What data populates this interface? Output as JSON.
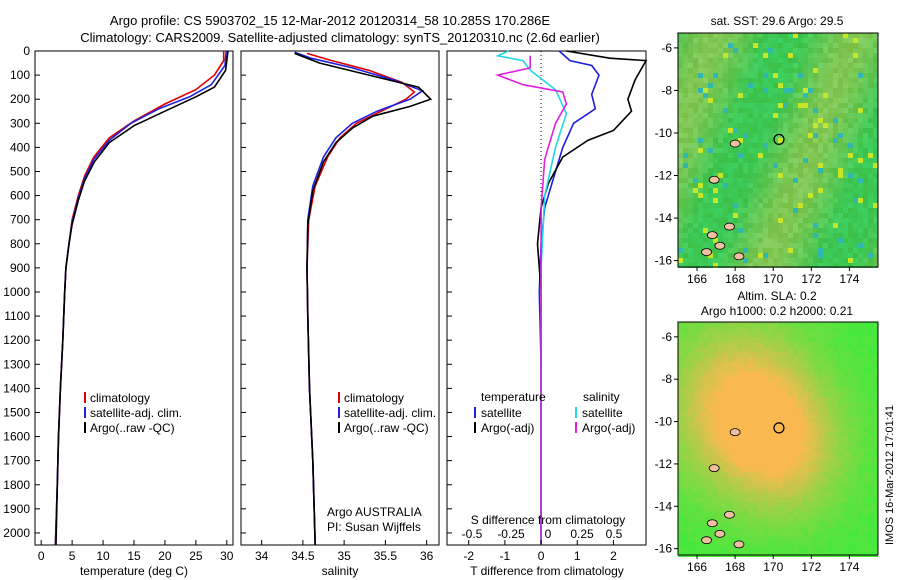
{
  "header": {
    "line1": "Argo profile: CS 5903702_15 12-Mar-2012 20120314_58 10.285S 170.286E",
    "line2": "Climatology: CARS2009. Satellite-adjusted climatology: synTS_20120310.nc (2.6d earlier)"
  },
  "colors": {
    "climatology": "#e00000",
    "satellite": "#1f1fe0",
    "argo": "#000000",
    "sal_satellite": "#22d8e8",
    "sal_argo": "#e020e0"
  },
  "footer_stamp": "IMOS 16-Mar-2012 17:01:41",
  "chart_data": [
    {
      "type": "line",
      "id": "temperature",
      "xlabel": "temperature (deg C)",
      "xlim": [
        -1,
        31
      ],
      "xticks": [
        "0",
        "5",
        "10",
        "15",
        "20",
        "25",
        "30"
      ],
      "ylim": [
        0,
        2050
      ],
      "yticks": [
        "0",
        "100",
        "200",
        "300",
        "400",
        "500",
        "600",
        "700",
        "800",
        "900",
        "1000",
        "1100",
        "1200",
        "1300",
        "1400",
        "1500",
        "1600",
        "1700",
        "1800",
        "1900",
        "2000"
      ],
      "legend": [
        "climatology",
        "satellite-adj. clim.",
        "Argo(..raw -QC)"
      ],
      "series": [
        {
          "name": "climatology",
          "color": "#e00000",
          "points": [
            [
              29.5,
              0
            ],
            [
              29.5,
              40
            ],
            [
              28,
              100
            ],
            [
              25,
              160
            ],
            [
              20,
              220
            ],
            [
              15,
              290
            ],
            [
              11,
              360
            ],
            [
              8.5,
              440
            ],
            [
              7,
              520
            ],
            [
              6,
              600
            ],
            [
              5,
              700
            ],
            [
              4.5,
              800
            ],
            [
              4,
              900
            ],
            [
              3.8,
              1000
            ],
            [
              3.5,
              1200
            ],
            [
              3.1,
              1400
            ],
            [
              2.8,
              1600
            ],
            [
              2.6,
              1800
            ],
            [
              2.3,
              2050
            ]
          ]
        },
        {
          "name": "satellite-adj. clim.",
          "color": "#1f1fe0",
          "points": [
            [
              29.9,
              0
            ],
            [
              29.7,
              60
            ],
            [
              27.5,
              140
            ],
            [
              24,
              190
            ],
            [
              19,
              240
            ],
            [
              14.5,
              300
            ],
            [
              11,
              370
            ],
            [
              8.5,
              450
            ],
            [
              7,
              530
            ],
            [
              6,
              610
            ],
            [
              5,
              710
            ],
            [
              4.5,
              800
            ],
            [
              4,
              900
            ],
            [
              3.8,
              1000
            ],
            [
              3.5,
              1200
            ],
            [
              3.1,
              1400
            ],
            [
              2.8,
              1600
            ],
            [
              2.6,
              1800
            ],
            [
              2.3,
              2050
            ]
          ]
        },
        {
          "name": "Argo(..raw -QC)",
          "color": "#000000",
          "points": [
            [
              30.2,
              0
            ],
            [
              29.8,
              80
            ],
            [
              28,
              150
            ],
            [
              25,
              190
            ],
            [
              20,
              250
            ],
            [
              15,
              310
            ],
            [
              11,
              380
            ],
            [
              8.6,
              460
            ],
            [
              7,
              540
            ],
            [
              6,
              620
            ],
            [
              5,
              720
            ],
            [
              4.5,
              800
            ],
            [
              4,
              900
            ],
            [
              3.8,
              1000
            ],
            [
              3.5,
              1200
            ],
            [
              3.1,
              1400
            ],
            [
              2.8,
              1600
            ],
            [
              2.6,
              1800
            ],
            [
              2.4,
              2050
            ]
          ]
        }
      ]
    },
    {
      "type": "line",
      "id": "salinity",
      "xlabel": "salinity",
      "xlim": [
        33.75,
        36.15
      ],
      "xticks": [
        "34",
        "34.5",
        "35",
        "35.5",
        "36"
      ],
      "ylim": [
        0,
        2050
      ],
      "legend": [
        "climatology",
        "satellite-adj. clim.",
        "Argo(..raw -QC)"
      ],
      "annotation": [
        "Argo AUSTRALIA",
        "PI: Susan Wijffels"
      ],
      "series": [
        {
          "name": "climatology",
          "color": "#e00000",
          "points": [
            [
              34.55,
              10
            ],
            [
              34.85,
              40
            ],
            [
              35.3,
              80
            ],
            [
              35.7,
              130
            ],
            [
              35.85,
              170
            ],
            [
              35.75,
              200
            ],
            [
              35.45,
              250
            ],
            [
              35.15,
              300
            ],
            [
              34.95,
              360
            ],
            [
              34.8,
              440
            ],
            [
              34.65,
              560
            ],
            [
              34.57,
              700
            ],
            [
              34.55,
              900
            ],
            [
              34.56,
              1100
            ],
            [
              34.58,
              1400
            ],
            [
              34.62,
              1700
            ],
            [
              34.65,
              2050
            ]
          ]
        },
        {
          "name": "satellite-adj. clim.",
          "color": "#1f1fe0",
          "points": [
            [
              34.4,
              5
            ],
            [
              34.6,
              30
            ],
            [
              35.1,
              70
            ],
            [
              35.6,
              120
            ],
            [
              35.95,
              165
            ],
            [
              35.8,
              200
            ],
            [
              35.4,
              250
            ],
            [
              35.1,
              300
            ],
            [
              34.9,
              360
            ],
            [
              34.75,
              440
            ],
            [
              34.62,
              560
            ],
            [
              34.56,
              700
            ],
            [
              34.55,
              900
            ],
            [
              34.56,
              1100
            ],
            [
              34.58,
              1400
            ],
            [
              34.62,
              1700
            ],
            [
              34.65,
              2050
            ]
          ]
        },
        {
          "name": "Argo(..raw -QC)",
          "color": "#000000",
          "points": [
            [
              34.4,
              10
            ],
            [
              34.7,
              50
            ],
            [
              35.3,
              100
            ],
            [
              35.9,
              150
            ],
            [
              36.05,
              200
            ],
            [
              35.8,
              230
            ],
            [
              35.35,
              270
            ],
            [
              35.1,
              320
            ],
            [
              34.9,
              380
            ],
            [
              34.75,
              460
            ],
            [
              34.62,
              580
            ],
            [
              34.56,
              720
            ],
            [
              34.55,
              900
            ],
            [
              34.56,
              1100
            ],
            [
              34.58,
              1400
            ],
            [
              34.62,
              1700
            ],
            [
              34.65,
              2050
            ]
          ]
        }
      ]
    },
    {
      "type": "line",
      "id": "difference",
      "xlabel": "T difference from climatology",
      "xlabel_top": "S difference from climatology",
      "xlim": [
        -2.6,
        2.9
      ],
      "xticks": [
        "-2",
        "-1",
        "0",
        "1",
        "2"
      ],
      "xticks_top": [
        "-0.5",
        "-0.25",
        "0",
        "0.25",
        "0.5"
      ],
      "ylim": [
        0,
        2050
      ],
      "legend_left": [
        "temperature",
        "satellite",
        "Argo(-adj)"
      ],
      "legend_right": [
        "salinity",
        "satellite",
        "Argo(-adj)"
      ],
      "series": [
        {
          "name": "temperature satellite",
          "color": "#1f1fe0",
          "points": [
            [
              0.5,
              0
            ],
            [
              0.8,
              40
            ],
            [
              1.4,
              60
            ],
            [
              1.6,
              100
            ],
            [
              1.4,
              180
            ],
            [
              1.5,
              240
            ],
            [
              0.9,
              300
            ],
            [
              0.6,
              400
            ],
            [
              0.4,
              500
            ],
            [
              0.1,
              650
            ],
            [
              0,
              800
            ],
            [
              -0.05,
              1000
            ],
            [
              0,
              1300
            ],
            [
              0,
              1600
            ],
            [
              0,
              2050
            ]
          ]
        },
        {
          "name": "temperature Argo(-adj)",
          "color": "#000000",
          "points": [
            [
              0.7,
              0
            ],
            [
              1.9,
              30
            ],
            [
              2.9,
              40
            ],
            [
              2.6,
              120
            ],
            [
              2.4,
              200
            ],
            [
              2.5,
              250
            ],
            [
              2.0,
              330
            ],
            [
              1.3,
              370
            ],
            [
              0.6,
              440
            ],
            [
              0.2,
              550
            ],
            [
              0,
              650
            ],
            [
              -0.1,
              800
            ],
            [
              0,
              1000
            ],
            [
              0,
              1300
            ],
            [
              0,
              1600
            ],
            [
              0,
              2050
            ]
          ]
        },
        {
          "name": "salinity satellite",
          "color": "#22d8e8",
          "points": [
            [
              -0.9,
              0
            ],
            [
              -1.2,
              20
            ],
            [
              -0.5,
              40
            ],
            [
              -0.3,
              80
            ],
            [
              0.4,
              160
            ],
            [
              0.7,
              260
            ],
            [
              0.4,
              400
            ],
            [
              0.1,
              600
            ],
            [
              0,
              900
            ],
            [
              0,
              1100
            ],
            [
              0,
              1400
            ],
            [
              0,
              1700
            ],
            [
              0,
              2050
            ]
          ]
        },
        {
          "name": "salinity Argo(-adj)",
          "color": "#e020e0",
          "points": [
            [
              -0.3,
              20
            ],
            [
              -0.3,
              70
            ],
            [
              -1.2,
              100
            ],
            [
              -0.5,
              140
            ],
            [
              0.6,
              170
            ],
            [
              0.7,
              220
            ],
            [
              0.4,
              300
            ],
            [
              0.1,
              450
            ],
            [
              0,
              650
            ],
            [
              0,
              900
            ],
            [
              0,
              1100
            ],
            [
              0,
              1400
            ],
            [
              0,
              1700
            ],
            [
              0,
              2050
            ]
          ]
        }
      ]
    },
    {
      "type": "heatmap",
      "id": "sst-map",
      "title": "sat. SST: 29.6 Argo: 29.5",
      "xticks": [
        "166",
        "168",
        "170",
        "172",
        "174"
      ],
      "yticks": [
        "-6",
        "-8",
        "-10",
        "-12",
        "-14",
        "-16"
      ],
      "xlim": [
        165,
        175.5
      ],
      "ylim": [
        -16.3,
        -5.3
      ],
      "marker": [
        170.3,
        -10.3
      ]
    },
    {
      "type": "heatmap",
      "id": "sla-map",
      "title_line1": "Altim. SLA: 0.2",
      "title_line2": "Argo h1000: 0.2 h2000: 0.21",
      "xticks": [
        "166",
        "168",
        "170",
        "172",
        "174"
      ],
      "yticks": [
        "-6",
        "-8",
        "-10",
        "-12",
        "-14",
        "-16"
      ],
      "xlim": [
        165,
        175.5
      ],
      "ylim": [
        -16.3,
        -5.3
      ],
      "marker": [
        170.3,
        -10.3
      ]
    }
  ]
}
